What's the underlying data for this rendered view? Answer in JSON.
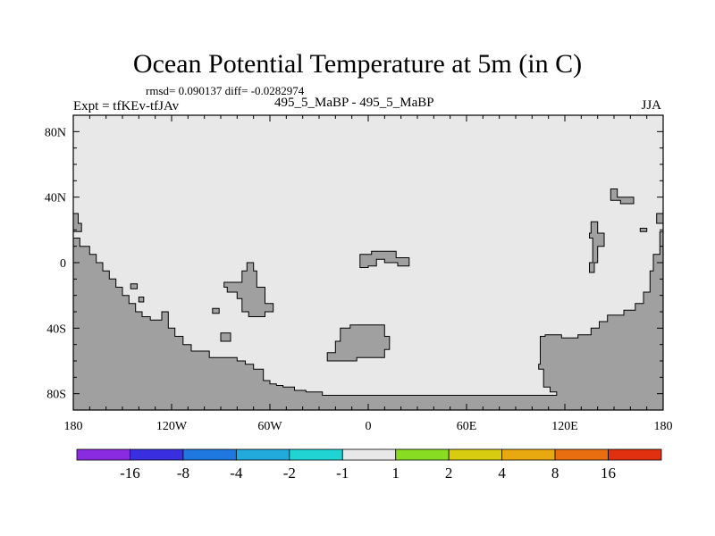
{
  "header": {
    "title": "Ocean Potential Temperature at 5m (in C)",
    "stats": "rmsd= 0.090137 diff= -0.0282974",
    "expt": "Expt = tfKEv-tfJAv",
    "case": "495_5_MaBP - 495_5_MaBP",
    "season": "JJA"
  },
  "map": {
    "lon_range": [
      -180,
      180
    ],
    "lat_range": [
      -90,
      90
    ],
    "ocean_color": "#e8e8e8",
    "land_color": "#a0a0a0",
    "x_ticks": [
      {
        "value": -180,
        "label": "180"
      },
      {
        "value": -120,
        "label": "120W"
      },
      {
        "value": -60,
        "label": "60W"
      },
      {
        "value": 0,
        "label": "0"
      },
      {
        "value": 60,
        "label": "60E"
      },
      {
        "value": 120,
        "label": "120E"
      },
      {
        "value": 180,
        "label": "180"
      }
    ],
    "y_ticks": [
      {
        "value": 80,
        "label": "80N"
      },
      {
        "value": 40,
        "label": "40N"
      },
      {
        "value": 0,
        "label": "0"
      },
      {
        "value": -40,
        "label": "40S"
      },
      {
        "value": -80,
        "label": "80S"
      }
    ],
    "land_polygons": [
      {
        "name": "land-southwest",
        "points": [
          [
            -180,
            15
          ],
          [
            -176,
            15
          ],
          [
            -176,
            10
          ],
          [
            -170,
            10
          ],
          [
            -170,
            5
          ],
          [
            -166,
            5
          ],
          [
            -166,
            0
          ],
          [
            -162,
            0
          ],
          [
            -162,
            -5
          ],
          [
            -158,
            -5
          ],
          [
            -158,
            -10
          ],
          [
            -154,
            -10
          ],
          [
            -154,
            -15
          ],
          [
            -150,
            -15
          ],
          [
            -150,
            -20
          ],
          [
            -146,
            -20
          ],
          [
            -146,
            -25
          ],
          [
            -142,
            -25
          ],
          [
            -142,
            -30
          ],
          [
            -138,
            -30
          ],
          [
            -138,
            -33
          ],
          [
            -133,
            -33
          ],
          [
            -133,
            -35
          ],
          [
            -126,
            -35
          ],
          [
            -126,
            -30
          ],
          [
            -122,
            -30
          ],
          [
            -122,
            -40
          ],
          [
            -118,
            -40
          ],
          [
            -118,
            -45
          ],
          [
            -113,
            -45
          ],
          [
            -113,
            -50
          ],
          [
            -108,
            -50
          ],
          [
            -108,
            -54
          ],
          [
            -97,
            -54
          ],
          [
            -97,
            -58
          ],
          [
            -80,
            -58
          ],
          [
            -80,
            -60
          ],
          [
            -75,
            -60
          ],
          [
            -75,
            -62
          ],
          [
            -70,
            -62
          ],
          [
            -70,
            -65
          ],
          [
            -64,
            -65
          ],
          [
            -64,
            -72
          ],
          [
            -60,
            -72
          ],
          [
            -60,
            -74
          ],
          [
            -56,
            -74
          ],
          [
            -56,
            -75
          ],
          [
            -52,
            -75
          ],
          [
            -52,
            -76
          ],
          [
            -45,
            -76
          ],
          [
            -45,
            -78
          ],
          [
            -38,
            -78
          ],
          [
            -38,
            -79
          ],
          [
            -28,
            -79
          ],
          [
            -28,
            -81
          ],
          [
            10,
            -81
          ],
          [
            60,
            -81
          ],
          [
            100,
            -81
          ],
          [
            115,
            -81
          ],
          [
            115,
            -79
          ],
          [
            111,
            -79
          ],
          [
            111,
            -76
          ],
          [
            107,
            -76
          ],
          [
            107,
            -65
          ],
          [
            104,
            -65
          ],
          [
            104,
            -62
          ],
          [
            105,
            -62
          ],
          [
            105,
            -45
          ],
          [
            108,
            -45
          ],
          [
            108,
            -44
          ],
          [
            118,
            -44
          ],
          [
            118,
            -46
          ],
          [
            128,
            -46
          ],
          [
            128,
            -44
          ],
          [
            136,
            -44
          ],
          [
            136,
            -40
          ],
          [
            141,
            -40
          ],
          [
            141,
            -36
          ],
          [
            146,
            -36
          ],
          [
            146,
            -32
          ],
          [
            156,
            -32
          ],
          [
            156,
            -29
          ],
          [
            163,
            -29
          ],
          [
            163,
            -25
          ],
          [
            168,
            -25
          ],
          [
            168,
            -18
          ],
          [
            172,
            -18
          ],
          [
            172,
            -5
          ],
          [
            174,
            -5
          ],
          [
            174,
            5
          ],
          [
            178,
            5
          ],
          [
            178,
            19
          ],
          [
            180,
            19
          ],
          [
            180,
            -90
          ],
          [
            -180,
            -90
          ]
        ]
      },
      {
        "name": "land-western-coast-nub",
        "points": [
          [
            -180,
            30
          ],
          [
            -177,
            30
          ],
          [
            -177,
            24
          ],
          [
            -175,
            24
          ],
          [
            -175,
            19
          ],
          [
            -180,
            19
          ]
        ]
      },
      {
        "name": "land-central-west-block",
        "points": [
          [
            -88,
            -12
          ],
          [
            -77,
            -12
          ],
          [
            -77,
            -5
          ],
          [
            -74,
            -5
          ],
          [
            -74,
            0
          ],
          [
            -70,
            0
          ],
          [
            -70,
            -5
          ],
          [
            -68,
            -5
          ],
          [
            -68,
            -15
          ],
          [
            -63,
            -15
          ],
          [
            -63,
            -25
          ],
          [
            -58,
            -25
          ],
          [
            -58,
            -30
          ],
          [
            -63,
            -30
          ],
          [
            -63,
            -33
          ],
          [
            -73,
            -33
          ],
          [
            -73,
            -30
          ],
          [
            -77,
            -30
          ],
          [
            -77,
            -22
          ],
          [
            -80,
            -22
          ],
          [
            -80,
            -18
          ],
          [
            -86,
            -18
          ],
          [
            -86,
            -15
          ],
          [
            -88,
            -15
          ]
        ]
      },
      {
        "name": "land-central-east-block",
        "points": [
          [
            -17,
            -40
          ],
          [
            -11,
            -40
          ],
          [
            -11,
            -38
          ],
          [
            10,
            -38
          ],
          [
            10,
            -45
          ],
          [
            13,
            -45
          ],
          [
            13,
            -53
          ],
          [
            10,
            -53
          ],
          [
            10,
            -58
          ],
          [
            -7,
            -58
          ],
          [
            -7,
            -60
          ],
          [
            -25,
            -60
          ],
          [
            -25,
            -55
          ],
          [
            -20,
            -55
          ],
          [
            -20,
            -48
          ],
          [
            -17,
            -48
          ]
        ]
      },
      {
        "name": "land-north-strip",
        "points": [
          [
            -5,
            5
          ],
          [
            2,
            5
          ],
          [
            2,
            7
          ],
          [
            17,
            7
          ],
          [
            17,
            3
          ],
          [
            25,
            3
          ],
          [
            25,
            -2
          ],
          [
            18,
            -2
          ],
          [
            18,
            0
          ],
          [
            10,
            0
          ],
          [
            10,
            2
          ],
          [
            5,
            2
          ],
          [
            5,
            -2
          ],
          [
            0,
            -2
          ],
          [
            0,
            -3
          ],
          [
            -5,
            -3
          ]
        ]
      },
      {
        "name": "land-east-north-block",
        "points": [
          [
            148,
            45
          ],
          [
            152,
            45
          ],
          [
            152,
            40
          ],
          [
            162,
            40
          ],
          [
            162,
            36
          ],
          [
            154,
            36
          ],
          [
            154,
            38
          ],
          [
            148,
            38
          ]
        ]
      },
      {
        "name": "land-east-mid-strip",
        "points": [
          [
            136,
            25
          ],
          [
            140,
            25
          ],
          [
            140,
            18
          ],
          [
            144,
            18
          ],
          [
            144,
            10
          ],
          [
            140,
            10
          ],
          [
            140,
            0
          ],
          [
            138,
            0
          ],
          [
            138,
            -6
          ],
          [
            135,
            -6
          ],
          [
            135,
            0
          ],
          [
            137,
            0
          ],
          [
            137,
            15
          ],
          [
            135,
            15
          ],
          [
            135,
            18
          ],
          [
            136,
            18
          ]
        ]
      },
      {
        "name": "land-east-small-1",
        "points": [
          [
            166,
            19
          ],
          [
            170,
            19
          ],
          [
            170,
            21
          ],
          [
            166,
            21
          ]
        ]
      },
      {
        "name": "land-east-small-2",
        "points": [
          [
            -90,
            -48
          ],
          [
            -84,
            -48
          ],
          [
            -84,
            -43
          ],
          [
            -90,
            -43
          ]
        ]
      },
      {
        "name": "land-west-small-1",
        "points": [
          [
            -145,
            -13
          ],
          [
            -141,
            -13
          ],
          [
            -141,
            -16
          ],
          [
            -145,
            -16
          ]
        ]
      },
      {
        "name": "land-west-small-2",
        "points": [
          [
            -140,
            -21
          ],
          [
            -137,
            -21
          ],
          [
            -137,
            -24
          ],
          [
            -140,
            -24
          ]
        ]
      },
      {
        "name": "land-west-small-3",
        "points": [
          [
            -95,
            -28
          ],
          [
            -91,
            -28
          ],
          [
            -91,
            -31
          ],
          [
            -95,
            -31
          ]
        ]
      },
      {
        "name": "land-east-edge-nub",
        "points": [
          [
            176,
            30
          ],
          [
            180,
            30
          ],
          [
            180,
            24
          ],
          [
            176,
            24
          ]
        ]
      }
    ]
  },
  "colorbar": {
    "colors": [
      "#8a2be2",
      "#3a2fe0",
      "#1f78e0",
      "#22aadd",
      "#21d4d4",
      "#e8e8e8",
      "#88dd22",
      "#d8cc10",
      "#e8a810",
      "#e86e10",
      "#e03010"
    ],
    "labels": [
      "-16",
      "-8",
      "-4",
      "-2",
      "-1",
      "1",
      "2",
      "4",
      "8",
      "16"
    ]
  }
}
